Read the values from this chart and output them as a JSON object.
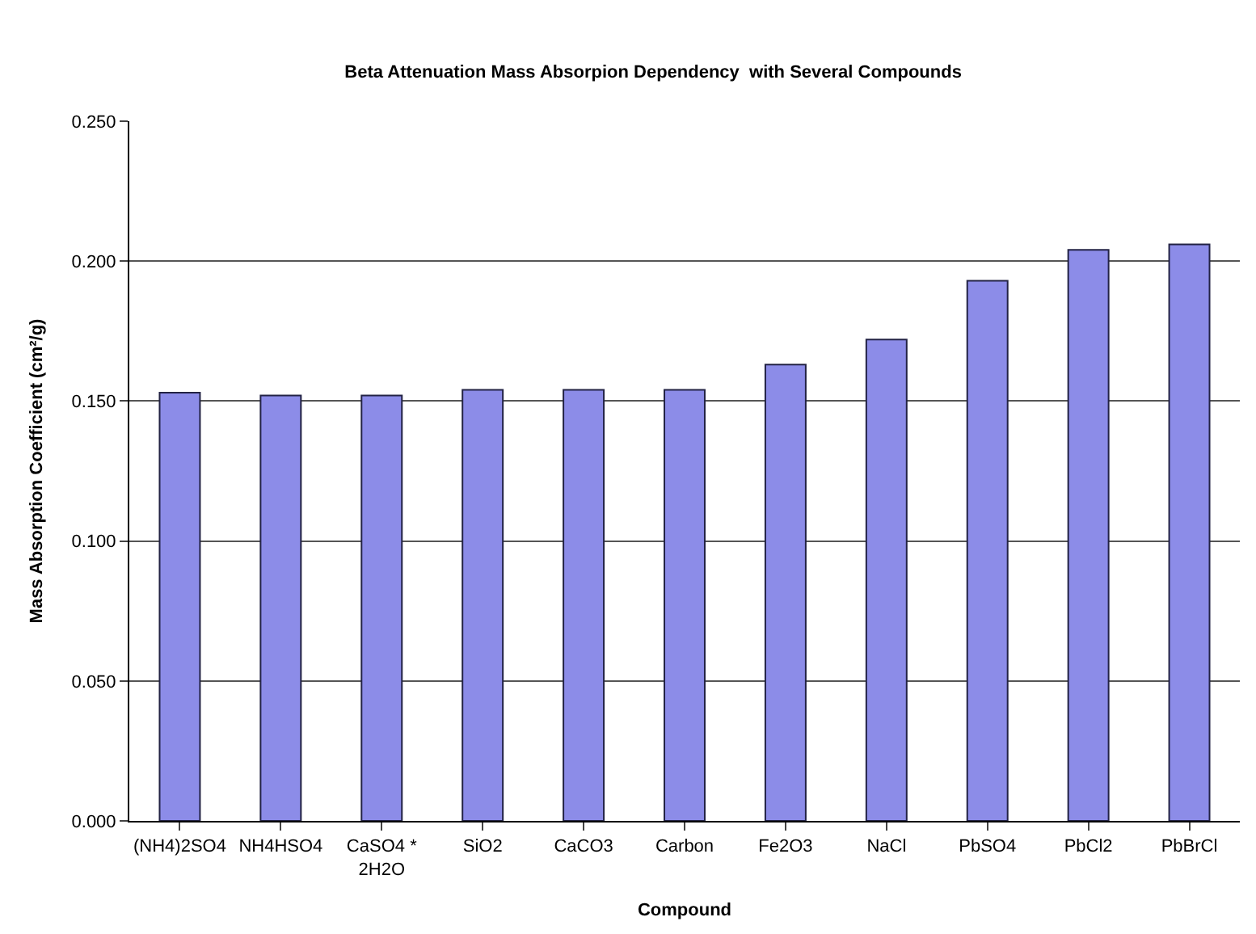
{
  "chart_data": {
    "type": "bar",
    "title": "Beta Attenuation Mass Absorpion Dependency  with Several Compounds",
    "xlabel": "Compound",
    "ylabel": "Mass Absorption Coefficient (cm²/g)",
    "categories": [
      "(NH4)2SO4",
      "NH4HSO4",
      "CaSO4 *\n2H2O",
      "SiO2",
      "CaCO3",
      "Carbon",
      "Fe2O3",
      "NaCl",
      "PbSO4",
      "PbCl2",
      "PbBrCl"
    ],
    "values": [
      0.153,
      0.152,
      0.152,
      0.154,
      0.154,
      0.154,
      0.163,
      0.172,
      0.193,
      0.204,
      0.206
    ],
    "color": "#8c8ce8",
    "ylim": [
      0,
      0.25
    ],
    "yticks": [
      {
        "value": 0,
        "label": "0.000"
      },
      {
        "value": 0.05,
        "label": "0.050"
      },
      {
        "value": 0.1,
        "label": "0.100"
      },
      {
        "value": 0.15,
        "label": "0.150"
      },
      {
        "value": 0.2,
        "label": "0.200"
      },
      {
        "value": 0.25,
        "label": "0.250"
      }
    ],
    "grid": "y"
  }
}
